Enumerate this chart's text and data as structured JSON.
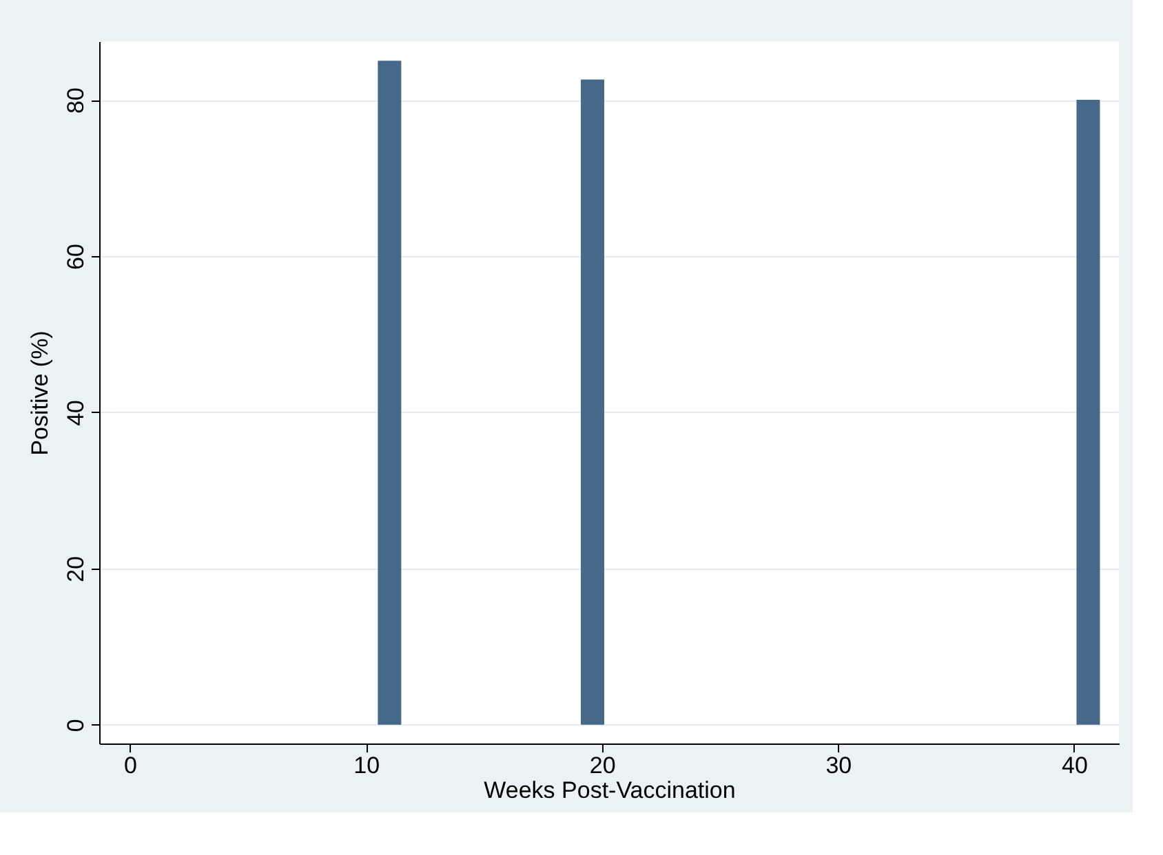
{
  "chart_data": {
    "type": "bar",
    "xlabel": "Weeks Post-Vaccination",
    "ylabel": "Positive (%)",
    "x": [
      0,
      11,
      19.6,
      40.6
    ],
    "series": [
      {
        "color": "#46698a",
        "values": [
          0,
          85,
          82.6,
          80
        ]
      }
    ],
    "xlim": [
      -1.3,
      41.9
    ],
    "xticks": [
      0,
      10,
      20,
      30,
      40
    ],
    "ylim": [
      -2.4,
      87.5
    ],
    "yticks": [
      0,
      20,
      40,
      60,
      80
    ],
    "grid": "y"
  }
}
